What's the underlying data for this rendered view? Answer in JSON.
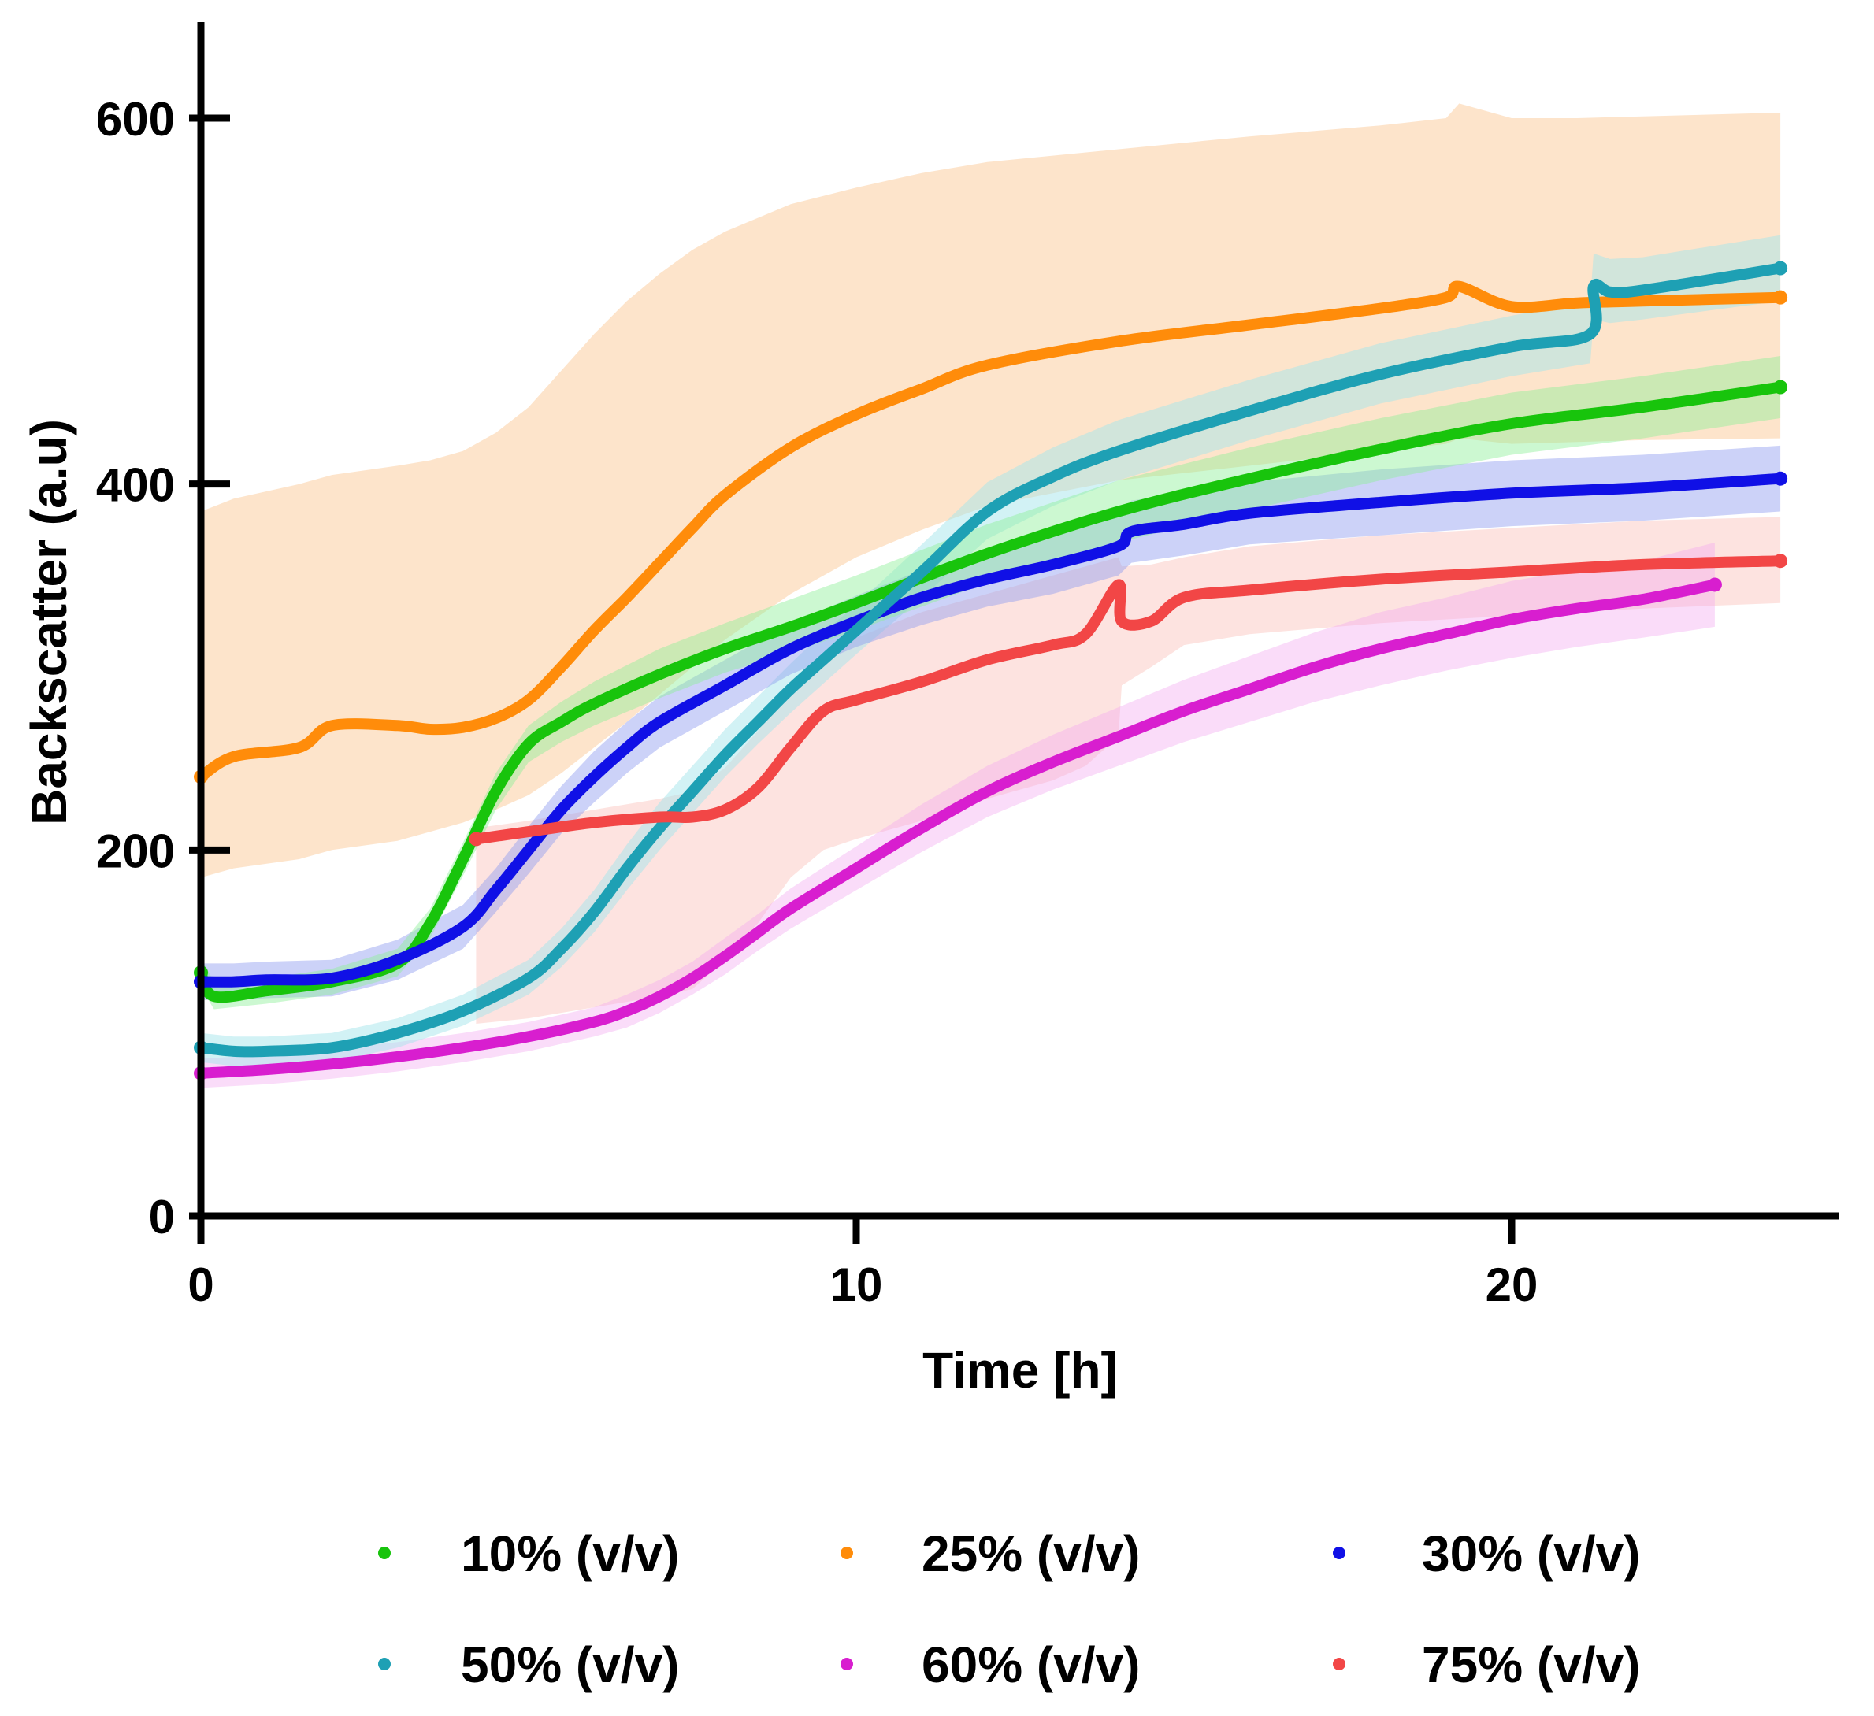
{
  "chart_data": {
    "type": "line",
    "title": "",
    "xlabel": "Time [h]",
    "ylabel": "Backscatter (a.u)",
    "xlim": [
      0,
      25
    ],
    "ylim": [
      0,
      650
    ],
    "xticks": [
      0,
      10,
      20
    ],
    "yticks": [
      0,
      200,
      400,
      600
    ],
    "grid": false,
    "legend_position": "bottom",
    "series": [
      {
        "name": "10% (v/v)",
        "color": "#18c40c",
        "band_color": "#8ff09a",
        "band_opacity": 0.45,
        "x": [
          0,
          0.2,
          1,
          2,
          3,
          3.5,
          4,
          4.5,
          5,
          5.5,
          6,
          7,
          8,
          9,
          10,
          12,
          14,
          16,
          18,
          20,
          22,
          24.1
        ],
        "y": [
          133,
          120,
          123,
          128,
          138,
          160,
          195,
          232,
          258,
          270,
          280,
          296,
          310,
          322,
          335,
          362,
          385,
          403,
          419,
          433,
          442,
          453
        ],
        "lower": [
          125,
          113,
          116,
          121,
          131,
          152,
          186,
          222,
          248,
          259,
          268,
          283,
          297,
          308,
          320,
          346,
          368,
          386,
          402,
          416,
          425,
          436
        ],
        "upper": [
          141,
          128,
          130,
          135,
          146,
          168,
          204,
          242,
          268,
          281,
          292,
          310,
          324,
          337,
          350,
          378,
          402,
          420,
          436,
          450,
          459,
          470
        ]
      },
      {
        "name": "25% (v/v)",
        "color": "#ff8c0a",
        "band_color": "#fcc997",
        "band_opacity": 0.5,
        "x": [
          0,
          0.5,
          1.5,
          2,
          3,
          3.5,
          4,
          4.5,
          5,
          5.5,
          6,
          6.5,
          7,
          7.5,
          8,
          9,
          10,
          11,
          12,
          14,
          16,
          18,
          19,
          19.2,
          20,
          21,
          22,
          24.1
        ],
        "y": [
          240,
          251,
          256,
          268,
          268,
          266,
          267,
          272,
          282,
          300,
          320,
          338,
          357,
          376,
          394,
          420,
          438,
          452,
          465,
          478,
          487,
          496,
          502,
          508,
          497,
          499,
          500,
          502
        ],
        "lower": [
          185,
          190,
          195,
          200,
          205,
          210,
          215,
          222,
          230,
          242,
          256,
          270,
          285,
          300,
          315,
          340,
          360,
          375,
          388,
          402,
          410,
          418,
          422,
          425,
          422,
          423,
          424,
          425
        ],
        "upper": [
          385,
          392,
          400,
          405,
          410,
          413,
          418,
          428,
          442,
          462,
          482,
          500,
          515,
          528,
          538,
          553,
          562,
          570,
          576,
          583,
          590,
          596,
          600,
          608,
          600,
          600,
          601,
          603
        ]
      },
      {
        "name": "30% (v/v)",
        "color": "#1010e6",
        "band_color": "#8e9cf0",
        "band_opacity": 0.45,
        "x": [
          0,
          0.5,
          1,
          2,
          3,
          4,
          4.5,
          5,
          5.5,
          6,
          6.5,
          7,
          8,
          9,
          10,
          11,
          12,
          13,
          14,
          14.2,
          15,
          16,
          18,
          20,
          22,
          24.1
        ],
        "y": [
          128,
          128,
          129,
          130,
          140,
          158,
          178,
          200,
          222,
          240,
          256,
          270,
          290,
          310,
          325,
          338,
          348,
          356,
          366,
          374,
          378,
          384,
          390,
          395,
          398,
          403
        ],
        "lower": [
          118,
          118,
          119,
          120,
          129,
          146,
          166,
          187,
          209,
          226,
          242,
          256,
          276,
          296,
          311,
          323,
          333,
          340,
          350,
          357,
          361,
          367,
          372,
          377,
          380,
          385
        ],
        "upper": [
          138,
          138,
          139,
          140,
          151,
          170,
          190,
          213,
          235,
          254,
          270,
          284,
          304,
          324,
          339,
          353,
          363,
          372,
          382,
          391,
          395,
          401,
          408,
          413,
          416,
          421
        ]
      },
      {
        "name": "50% (v/v)",
        "color": "#1ea0b4",
        "band_color": "#a6e6ec",
        "band_opacity": 0.5,
        "x": [
          0,
          0.5,
          1,
          2,
          3,
          4,
          5,
          5.5,
          6,
          6.5,
          7,
          7.5,
          8,
          8.5,
          9,
          9.5,
          10,
          11,
          12,
          13,
          14,
          16,
          18,
          20,
          21.2,
          21.25,
          21.5,
          22,
          24.1
        ],
        "y": [
          92,
          90,
          90,
          92,
          100,
          112,
          130,
          146,
          166,
          190,
          212,
          232,
          252,
          270,
          288,
          304,
          320,
          352,
          385,
          404,
          418,
          440,
          460,
          475,
          482,
          508,
          505,
          506,
          518
        ],
        "lower": [
          84,
          82,
          82,
          84,
          92,
          104,
          121,
          136,
          155,
          178,
          200,
          220,
          240,
          258,
          275,
          291,
          307,
          338,
          370,
          388,
          402,
          424,
          444,
          459,
          466,
          490,
          488,
          490,
          500
        ],
        "upper": [
          100,
          98,
          98,
          100,
          108,
          121,
          140,
          157,
          178,
          203,
          226,
          246,
          266,
          284,
          302,
          319,
          334,
          367,
          401,
          420,
          435,
          457,
          477,
          492,
          500,
          526,
          523,
          524,
          536
        ]
      },
      {
        "name": "60% (v/v)",
        "color": "#d81ecf",
        "band_color": "#f3a8f0",
        "band_opacity": 0.4,
        "x": [
          0,
          1,
          2,
          3,
          4,
          5,
          6,
          6.5,
          7,
          7.5,
          8,
          8.5,
          9,
          10,
          11,
          12,
          13,
          14,
          15,
          16,
          17,
          18,
          19,
          20,
          21,
          22,
          23.1
        ],
        "y": [
          78,
          80,
          83,
          87,
          92,
          98,
          106,
          112,
          120,
          130,
          142,
          155,
          168,
          190,
          212,
          232,
          248,
          262,
          276,
          288,
          300,
          310,
          318,
          326,
          332,
          337,
          345
        ],
        "lower": [
          70,
          72,
          75,
          79,
          84,
          90,
          98,
          103,
          111,
          121,
          132,
          145,
          157,
          178,
          199,
          218,
          233,
          246,
          259,
          270,
          281,
          290,
          298,
          305,
          311,
          316,
          322
        ],
        "upper": [
          86,
          88,
          91,
          95,
          100,
          106,
          114,
          121,
          129,
          139,
          152,
          165,
          179,
          202,
          225,
          246,
          263,
          278,
          293,
          306,
          319,
          330,
          338,
          347,
          353,
          358,
          368
        ]
      },
      {
        "name": "75% (v/v)",
        "color": "#f24646",
        "band_color": "#fbc8c2",
        "band_opacity": 0.5,
        "x": [
          4.2,
          5,
          6,
          7,
          7.5,
          8,
          8.5,
          9,
          9.5,
          10,
          11,
          12,
          13,
          13.5,
          14,
          14.05,
          14.5,
          15,
          16,
          18,
          20,
          22,
          24.1
        ],
        "y": [
          206,
          210,
          215,
          218,
          218,
          222,
          234,
          256,
          276,
          282,
          292,
          304,
          312,
          318,
          345,
          325,
          325,
          338,
          342,
          348,
          352,
          356,
          358
        ],
        "lower": [
          105,
          108,
          114,
          120,
          124,
          140,
          160,
          185,
          200,
          206,
          216,
          228,
          238,
          246,
          262,
          290,
          300,
          312,
          318,
          324,
          328,
          332,
          335
        ],
        "upper": [
          212,
          216,
          222,
          228,
          232,
          245,
          265,
          290,
          308,
          316,
          330,
          340,
          350,
          355,
          360,
          355,
          356,
          360,
          366,
          372,
          376,
          380,
          382
        ]
      }
    ]
  }
}
